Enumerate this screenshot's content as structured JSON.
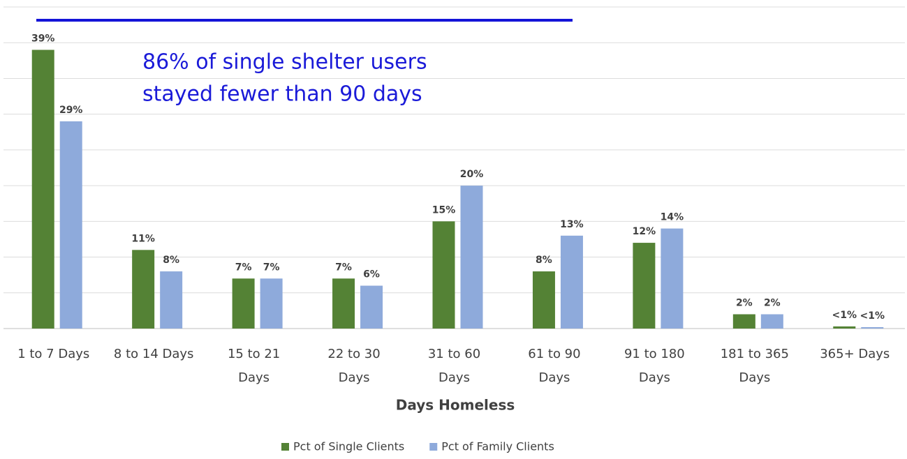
{
  "chart_data": {
    "type": "bar",
    "annotation": [
      "86% of single shelter users",
      "stayed fewer than 90 days"
    ],
    "x_label": "Days Homeless",
    "categories": [
      [
        "1 to 7 Days"
      ],
      [
        "8 to 14 Days"
      ],
      [
        "15 to 21",
        "Days"
      ],
      [
        "22 to 30",
        "Days"
      ],
      [
        "31 to 60",
        "Days"
      ],
      [
        "61 to 90",
        "Days"
      ],
      [
        "91 to 180",
        "Days"
      ],
      [
        "181 to 365",
        "Days"
      ],
      [
        "365+ Days"
      ]
    ],
    "series": [
      {
        "name": "Pct of Single Clients",
        "color": "#548235",
        "values": [
          39,
          11,
          7,
          7,
          15,
          8,
          12,
          2,
          0.3
        ],
        "value_labels": [
          "39%",
          "11%",
          "7%",
          "7%",
          "15%",
          "8%",
          "12%",
          "2%",
          "<1%"
        ]
      },
      {
        "name": "Pct of Family Clients",
        "color": "#8eaadb",
        "values": [
          29,
          8,
          7,
          6,
          20,
          13,
          14,
          2,
          0.2
        ],
        "value_labels": [
          "29%",
          "8%",
          "7%",
          "6%",
          "20%",
          "13%",
          "14%",
          "2%",
          "<1%"
        ]
      }
    ],
    "ylim": [
      0,
      45
    ],
    "yticks": [
      0,
      5,
      10,
      15,
      20,
      25,
      30,
      35,
      40,
      45
    ],
    "grid": true,
    "legend": "bottom"
  }
}
